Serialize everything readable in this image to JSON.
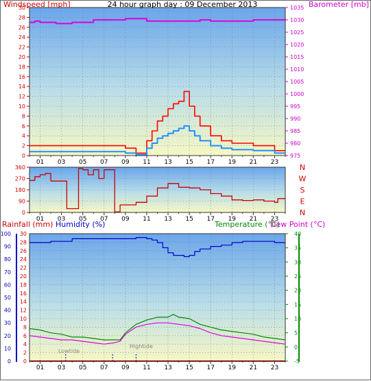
{
  "chart_data": [
    {
      "type": "line",
      "title": "24 hour graph day : 09 December 2013",
      "ylabel": "Windspeed [mph]",
      "y2label": "Barometer [mb]",
      "ylim": [
        0,
        30
      ],
      "y2lim": [
        975,
        1035
      ],
      "yticks": [
        "0",
        "2",
        "4",
        "6",
        "8",
        "10",
        "12",
        "14",
        "16",
        "18",
        "20",
        "22",
        "24",
        "26",
        "28",
        "30"
      ],
      "y2ticks": [
        "975",
        "980",
        "985",
        "990",
        "995",
        "1000",
        "1005",
        "1010",
        "1015",
        "1020",
        "1025",
        "1030",
        "1035"
      ],
      "xticks": [
        "01",
        "03",
        "05",
        "07",
        "09",
        "11",
        "13",
        "15",
        "17",
        "19",
        "21",
        "23"
      ],
      "grid": true,
      "colors": {
        "gust": "#ff0000",
        "wind": "#1e90ff",
        "barometer": "#dd00dd",
        "axis_left": "#cc0000",
        "axis_right": "#cc00cc"
      },
      "series": [
        {
          "name": "Wind gust",
          "x": [
            0,
            1,
            2,
            3,
            4,
            5,
            6,
            7,
            8,
            9,
            10,
            11,
            11.5,
            12,
            12.5,
            13,
            13.5,
            14,
            14.5,
            15,
            15.5,
            16,
            17,
            18,
            19,
            20,
            21,
            22,
            23,
            24
          ],
          "values": [
            2,
            2,
            2,
            2,
            2,
            2,
            2,
            2,
            2,
            1.5,
            0.5,
            3,
            5,
            7,
            8,
            9.5,
            10.5,
            11,
            13,
            10,
            8,
            6,
            4,
            3,
            2.5,
            2.5,
            2,
            2,
            1,
            1
          ]
        },
        {
          "name": "Wind",
          "x": [
            0,
            1,
            2,
            3,
            4,
            5,
            6,
            7,
            8,
            9,
            10,
            11,
            11.5,
            12,
            12.5,
            13,
            13.5,
            14,
            14.5,
            15,
            15.5,
            16,
            17,
            18,
            19,
            20,
            21,
            22,
            23,
            24
          ],
          "values": [
            0.8,
            0.8,
            0.8,
            0.8,
            0.8,
            0.8,
            0.8,
            0.8,
            0.8,
            0.5,
            0.2,
            1.5,
            2.5,
            3.5,
            4,
            4.5,
            5,
            5.5,
            6,
            5,
            4,
            3,
            2,
            1.5,
            1.2,
            1.2,
            1,
            1,
            0.5,
            0.5
          ]
        },
        {
          "name": "Barometer",
          "x": [
            0,
            0.5,
            1,
            2,
            2.5,
            3,
            4,
            5,
            6,
            7,
            8,
            9,
            10,
            11,
            12,
            13,
            14,
            15,
            16,
            17,
            18,
            19,
            20,
            21,
            22,
            23,
            24
          ],
          "values": [
            1029,
            1029.5,
            1029,
            1029,
            1028.5,
            1028.5,
            1029,
            1029,
            1030,
            1030,
            1030,
            1030.5,
            1030.5,
            1029.5,
            1029.5,
            1029.5,
            1029.5,
            1029.5,
            1030,
            1029.5,
            1029.5,
            1029.5,
            1029.5,
            1030,
            1030,
            1030,
            1030
          ]
        }
      ]
    },
    {
      "type": "line",
      "ylim": [
        0,
        360
      ],
      "yticks": [
        "0",
        "90",
        "180",
        "270",
        "360"
      ],
      "direction_labels": [
        "N",
        "W",
        "S",
        "E",
        "N"
      ],
      "xticks": [
        "01",
        "03",
        "05",
        "07",
        "09",
        "11",
        "13",
        "15",
        "17",
        "19",
        "21",
        "23"
      ],
      "grid": true,
      "colors": {
        "direction": "#cc0000",
        "axis_left": "#cc0000"
      },
      "series": [
        {
          "name": "Wind direction",
          "x": [
            0,
            0.5,
            1,
            1.5,
            2,
            2.5,
            3,
            3.5,
            4,
            4.3,
            4.6,
            5,
            5.5,
            6,
            6.5,
            7,
            7.5,
            8,
            8.5,
            9,
            10,
            11,
            12,
            13,
            14,
            15,
            16,
            17,
            18,
            19,
            20,
            21,
            22,
            23,
            23.3,
            24
          ],
          "values": [
            255,
            285,
            300,
            310,
            250,
            250,
            250,
            30,
            30,
            30,
            350,
            340,
            300,
            340,
            270,
            340,
            340,
            5,
            60,
            60,
            80,
            130,
            195,
            230,
            200,
            195,
            180,
            150,
            130,
            100,
            95,
            100,
            90,
            80,
            110,
            110
          ]
        }
      ]
    },
    {
      "type": "line",
      "ylabel": "Rainfall (mm)",
      "ylabel2": "Humidity (%)",
      "y2label": "Temperature (°C)",
      "y2label2": "Dew Point (°C)",
      "ylim": [
        0,
        30
      ],
      "humidity_lim": [
        0,
        100
      ],
      "y2lim": [
        -5,
        40
      ],
      "yticks": [
        "0",
        "2",
        "4",
        "6",
        "8",
        "10",
        "12",
        "14",
        "16",
        "18",
        "20",
        "22",
        "24",
        "26",
        "28",
        "30"
      ],
      "humidity_ticks": [
        "0",
        "10",
        "20",
        "30",
        "40",
        "50",
        "60",
        "70",
        "80",
        "90",
        "100"
      ],
      "y2ticks": [
        "-5",
        "0",
        "5",
        "10",
        "15",
        "20",
        "25",
        "30",
        "35",
        "40"
      ],
      "xticks": [
        "01",
        "03",
        "05",
        "07",
        "09",
        "11",
        "13",
        "15",
        "17",
        "19",
        "21",
        "23"
      ],
      "annotations": [
        "Lowtide",
        "Hightide"
      ],
      "grid": true,
      "colors": {
        "humidity": "#0000cc",
        "temperature": "#008800",
        "dewpoint": "#dd00dd",
        "rain": "#cc0000",
        "axis_rain": "#cc0000",
        "axis_humidity": "#0000cc",
        "axis_temp": "#008800",
        "axis_dew": "#cc00cc"
      },
      "series": [
        {
          "name": "Humidity",
          "x": [
            0,
            1,
            2,
            3,
            4,
            5,
            6,
            7,
            8,
            9,
            10,
            11,
            11.5,
            12,
            12.5,
            13,
            13.5,
            14,
            14.5,
            15,
            15.5,
            16,
            17,
            18,
            19,
            20,
            21,
            22,
            23,
            24
          ],
          "values": [
            93,
            93,
            94,
            94,
            96,
            96,
            96,
            96,
            96,
            96,
            97,
            96,
            95,
            93,
            89,
            85,
            83,
            83,
            82,
            83,
            86,
            88,
            90,
            91,
            93,
            94,
            94,
            94,
            93,
            92
          ]
        },
        {
          "name": "Temperature",
          "x": [
            0,
            1,
            2,
            3,
            4,
            5,
            6,
            7,
            8,
            8.5,
            9,
            10,
            11,
            12,
            13,
            13.5,
            14,
            15,
            16,
            17,
            18,
            19,
            20,
            21,
            22,
            23,
            24
          ],
          "values": [
            6.5,
            6,
            5,
            4.5,
            3.5,
            3.5,
            3,
            2.5,
            2.5,
            2.5,
            5,
            8,
            9.5,
            10.5,
            10.5,
            11.5,
            10.5,
            10,
            8,
            7,
            6,
            5.5,
            5,
            4.5,
            3.5,
            3,
            2.5
          ]
        },
        {
          "name": "Dew Point",
          "x": [
            0,
            1,
            2,
            3,
            4,
            5,
            6,
            7,
            8,
            8.5,
            9,
            10,
            11,
            12,
            13,
            14,
            15,
            16,
            17,
            18,
            19,
            20,
            21,
            22,
            23,
            24
          ],
          "values": [
            4,
            3.5,
            3,
            2.5,
            2.5,
            2,
            1.5,
            1,
            1.5,
            2,
            4.5,
            7,
            8,
            8.5,
            8.5,
            8,
            7.5,
            6.5,
            5,
            4,
            3.5,
            3,
            2.5,
            2,
            1.5,
            1
          ]
        }
      ]
    }
  ]
}
